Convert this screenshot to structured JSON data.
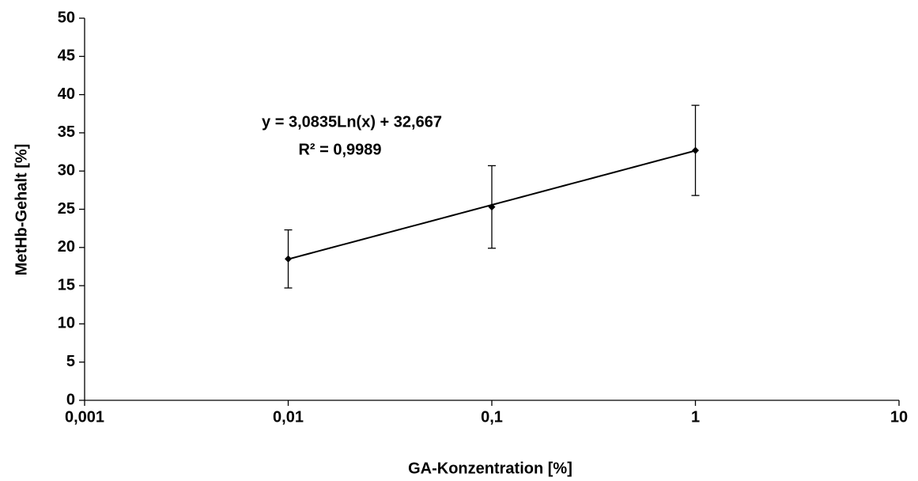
{
  "chart_data": {
    "type": "scatter",
    "x_label": "GA-Konzentration [%]",
    "y_label": "MetHb-Gehalt [%]",
    "log_x": true,
    "grid": false,
    "color": "#000000",
    "series": [
      {
        "x": [
          0.01,
          0.1,
          1
        ],
        "values": [
          18.5,
          25.3,
          32.7
        ],
        "errors": [
          3.8,
          5.4,
          5.9
        ]
      }
    ],
    "trendline": {
      "kind": "log",
      "coefficients": [
        3.0835,
        32.667
      ],
      "label": "y = 3,0835Ln(x) + 32,667",
      "r2_label": "R² = 0,9989"
    },
    "xlim": [
      0.001,
      10
    ],
    "xticks": [
      {
        "value": 0.001,
        "label": "0,001"
      },
      {
        "value": 0.01,
        "label": "0,01"
      },
      {
        "value": 0.1,
        "label": "0,1"
      },
      1,
      10
    ],
    "ylim": [
      0,
      50
    ],
    "yticks": [
      0,
      5,
      10,
      15,
      20,
      25,
      30,
      35,
      40,
      45,
      50
    ]
  }
}
